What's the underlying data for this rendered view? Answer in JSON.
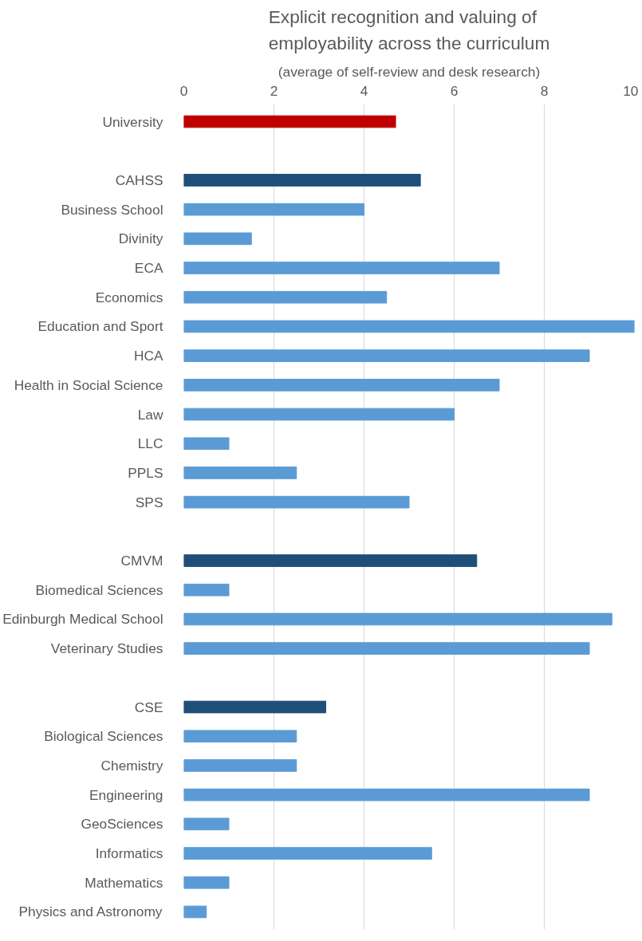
{
  "chart_data": {
    "type": "bar",
    "orientation": "horizontal",
    "title": "Explicit recognition and valuing of employability across the curriculum",
    "subtitle": "(average of self-review and desk research)",
    "categories": [
      "University",
      null,
      "CAHSS",
      "Business School",
      "Divinity",
      "ECA",
      "Economics",
      "Education and Sport",
      "HCA",
      "Health in Social Science",
      "Law",
      "LLC",
      "PPLS",
      "SPS",
      null,
      "CMVM",
      "Biomedical Sciences",
      "Edinburgh Medical School",
      "Veterinary Studies",
      null,
      "CSE",
      "Biological Sciences",
      "Chemistry",
      "Engineering",
      "GeoSciences",
      "Informatics",
      "Mathematics",
      "Physics and Astronomy"
    ],
    "values": [
      4.7,
      null,
      5.25,
      4,
      1.5,
      7,
      4.5,
      10,
      9,
      7,
      6,
      1,
      2.5,
      5,
      null,
      6.5,
      1,
      9.5,
      9,
      null,
      3.15,
      2.5,
      2.5,
      9,
      1,
      5.5,
      1,
      0.5
    ],
    "colors": [
      "#c00000",
      "#5b9bd5",
      "#1f4e79",
      "#5b9bd5",
      "#5b9bd5",
      "#5b9bd5",
      "#5b9bd5",
      "#5b9bd5",
      "#5b9bd5",
      "#5b9bd5",
      "#5b9bd5",
      "#5b9bd5",
      "#5b9bd5",
      "#5b9bd5",
      "#5b9bd5",
      "#1f4e79",
      "#5b9bd5",
      "#5b9bd5",
      "#5b9bd5",
      "#5b9bd5",
      "#1f4e79",
      "#5b9bd5",
      "#5b9bd5",
      "#5b9bd5",
      "#5b9bd5",
      "#5b9bd5",
      "#5b9bd5",
      "#5b9bd5"
    ],
    "xlim": [
      0,
      10
    ],
    "xticks": [
      0,
      2,
      4,
      6,
      8,
      10
    ],
    "grid": "x"
  }
}
